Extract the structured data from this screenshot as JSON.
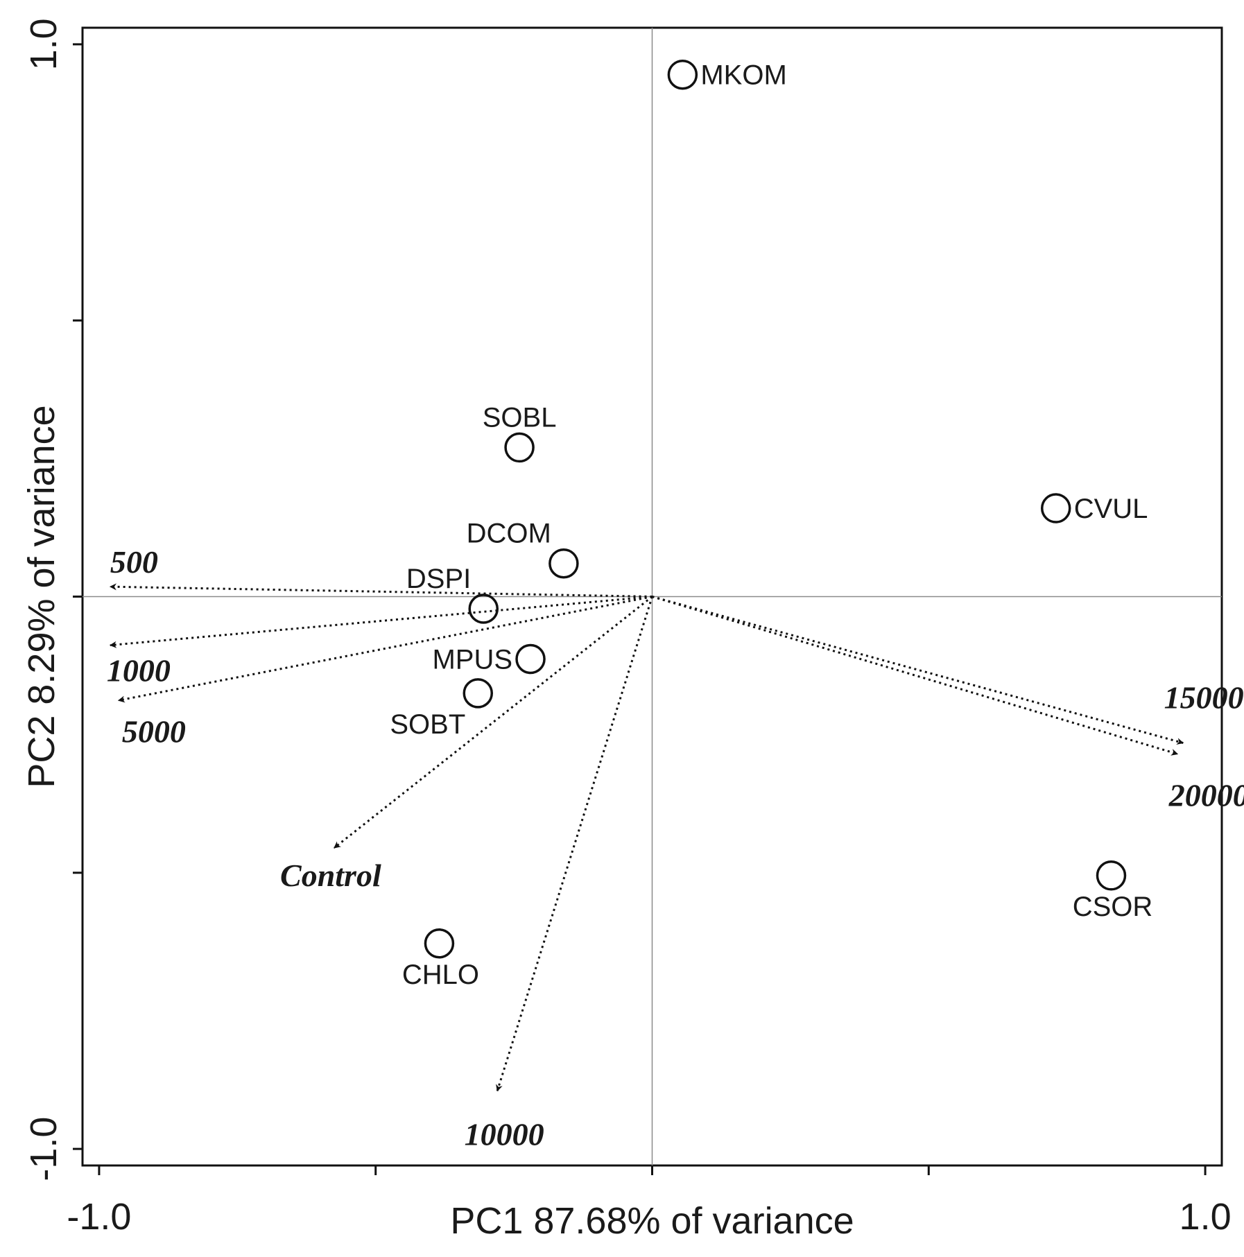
{
  "chart_data": {
    "type": "scatter",
    "subtype": "pca-biplot",
    "title": "",
    "xlabel": "PC1 87.68% of variance",
    "ylabel": "PC2 8.29% of variance",
    "xlim": [
      -1.03,
      1.03
    ],
    "ylim": [
      -1.03,
      1.03
    ],
    "xticks": [
      -1.0,
      -0.5,
      0.0,
      0.5,
      1.0
    ],
    "yticks": [
      -1.0,
      -0.5,
      0.0,
      0.5,
      1.0
    ],
    "xtick_labels": [
      "-1.0",
      "",
      "",
      "",
      "1.0"
    ],
    "ytick_labels": [
      "-1.0",
      "",
      "",
      "",
      "1.0"
    ],
    "points": [
      {
        "label": "MKOM",
        "x": 0.055,
        "y": 0.945,
        "label_pos": "right"
      },
      {
        "label": "SOBL",
        "x": -0.24,
        "y": 0.27,
        "label_pos": "above"
      },
      {
        "label": "CVUL",
        "x": 0.73,
        "y": 0.16,
        "label_pos": "right"
      },
      {
        "label": "DCOM",
        "x": -0.16,
        "y": 0.06,
        "label_pos": "above-left"
      },
      {
        "label": "DSPI",
        "x": -0.305,
        "y": -0.022,
        "label_pos": "above-left"
      },
      {
        "label": "MPUS",
        "x": -0.22,
        "y": -0.113,
        "label_pos": "left"
      },
      {
        "label": "SOBT",
        "x": -0.315,
        "y": -0.175,
        "label_pos": "below-left"
      },
      {
        "label": "CSOR",
        "x": 0.83,
        "y": -0.505,
        "label_pos": "below"
      },
      {
        "label": "CHLO",
        "x": -0.385,
        "y": -0.628,
        "label_pos": "below"
      }
    ],
    "vectors": [
      {
        "label": "500",
        "x": -0.98,
        "y": 0.018
      },
      {
        "label": "1000",
        "x": -0.98,
        "y": -0.088
      },
      {
        "label": "5000",
        "x": -0.965,
        "y": -0.188
      },
      {
        "label": "Control",
        "x": -0.575,
        "y": -0.455
      },
      {
        "label": "10000",
        "x": -0.28,
        "y": -0.895
      },
      {
        "label": "15000",
        "x": 0.96,
        "y": -0.265
      },
      {
        "label": "20000",
        "x": 0.95,
        "y": -0.285
      }
    ]
  }
}
